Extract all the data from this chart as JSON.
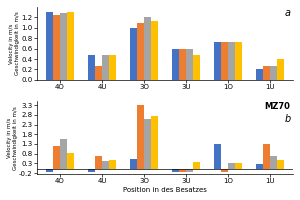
{
  "categories": [
    "4O",
    "4U",
    "3O",
    "3U",
    "1O",
    "1U"
  ],
  "colors": [
    "#4472c4",
    "#ed7d31",
    "#a5a5a5",
    "#ffc000"
  ],
  "subplot_a": {
    "label": "a",
    "ylabel": "Velocity in m/s\nGeschwindigkeit in m/s",
    "ylim": [
      0,
      1.4
    ],
    "yticks": [
      0.0,
      0.2,
      0.4,
      0.6,
      0.8,
      1.0,
      1.2
    ],
    "data": [
      [
        1.3,
        1.25,
        1.28,
        1.3
      ],
      [
        0.48,
        0.26,
        0.48,
        0.48
      ],
      [
        1.0,
        1.1,
        1.2,
        1.13
      ],
      [
        0.6,
        0.6,
        0.6,
        0.48
      ],
      [
        0.72,
        0.72,
        0.72,
        0.72
      ],
      [
        0.2,
        0.26,
        0.26,
        0.4
      ]
    ]
  },
  "subplot_b": {
    "label": "b",
    "label2": "MZ70",
    "ylabel": "Velocity in m/s\nGeschwindigkeit in m/s",
    "xlabel": "Position in des Besatzes",
    "ylim": [
      -0.25,
      3.5
    ],
    "yticks": [
      -0.2,
      0.3,
      0.8,
      1.3,
      1.8,
      2.3,
      2.8,
      3.3
    ],
    "data": [
      [
        -0.15,
        1.2,
        1.55,
        0.85
      ],
      [
        -0.13,
        0.68,
        0.43,
        0.45
      ],
      [
        0.55,
        3.3,
        2.6,
        2.75
      ],
      [
        -0.12,
        -0.12,
        -0.12,
        0.38
      ],
      [
        1.3,
        -0.14,
        0.32,
        0.32
      ],
      [
        0.28,
        1.3,
        0.68,
        0.45
      ]
    ]
  },
  "bar_width": 0.17,
  "background_color": "#ffffff"
}
